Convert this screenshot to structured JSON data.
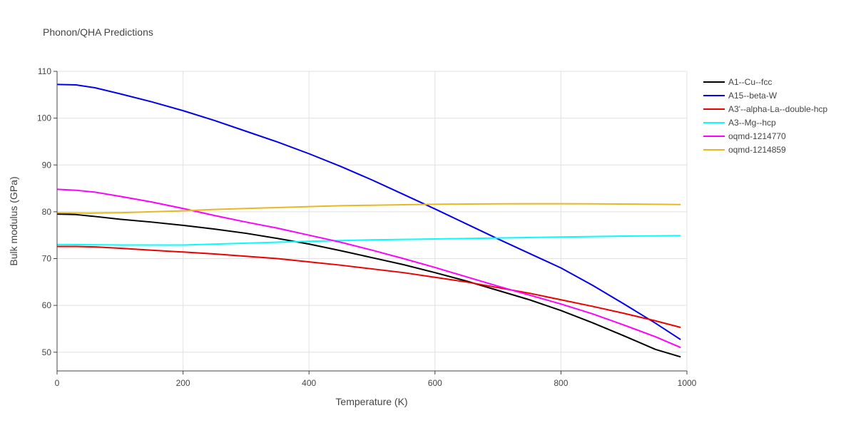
{
  "chart_data": {
    "type": "line",
    "title": "Phonon/QHA Predictions",
    "xlabel": "Temperature (K)",
    "ylabel": "Bulk modulus (GPa)",
    "xlim": [
      0,
      1000
    ],
    "ylim": [
      46,
      110
    ],
    "xticks": [
      0,
      200,
      400,
      600,
      800,
      1000
    ],
    "yticks": [
      50,
      60,
      70,
      80,
      90,
      100,
      110
    ],
    "grid": true,
    "legend_position": "top-right",
    "series": [
      {
        "name": "A1--Cu--fcc",
        "color": "#000000",
        "x": [
          0,
          30,
          60,
          100,
          150,
          200,
          250,
          300,
          350,
          400,
          450,
          500,
          550,
          600,
          650,
          700,
          750,
          800,
          850,
          900,
          950,
          990
        ],
        "y": [
          79.5,
          79.4,
          79.0,
          78.4,
          77.8,
          77.1,
          76.3,
          75.4,
          74.3,
          73.1,
          71.7,
          70.2,
          68.7,
          67.0,
          65.2,
          63.2,
          61.2,
          58.9,
          56.3,
          53.5,
          50.6,
          49.0
        ]
      },
      {
        "name": "A15--beta-W",
        "color": "#0000ee",
        "x": [
          0,
          30,
          60,
          100,
          150,
          200,
          250,
          300,
          350,
          400,
          450,
          500,
          550,
          600,
          650,
          700,
          750,
          800,
          850,
          900,
          950,
          990
        ],
        "y": [
          107.2,
          107.1,
          106.5,
          105.2,
          103.5,
          101.6,
          99.5,
          97.2,
          94.9,
          92.4,
          89.7,
          86.8,
          83.7,
          80.6,
          77.4,
          74.2,
          71.1,
          68.0,
          64.3,
          60.3,
          56.2,
          52.7
        ]
      },
      {
        "name": "A3'--alpha-La--double-hcp",
        "color": "#ee0000",
        "x": [
          0,
          30,
          60,
          100,
          150,
          200,
          250,
          300,
          350,
          400,
          450,
          500,
          550,
          600,
          650,
          700,
          750,
          800,
          850,
          900,
          950,
          990
        ],
        "y": [
          72.6,
          72.6,
          72.5,
          72.2,
          71.8,
          71.4,
          71.0,
          70.5,
          70.0,
          69.3,
          68.6,
          67.8,
          67.0,
          66.0,
          65.0,
          63.8,
          62.6,
          61.2,
          59.8,
          58.3,
          56.7,
          55.3
        ]
      },
      {
        "name": "A3--Mg--hcp",
        "color": "#00ffff",
        "x": [
          0,
          100,
          200,
          300,
          400,
          500,
          600,
          700,
          800,
          900,
          990
        ],
        "y": [
          73.0,
          72.9,
          72.9,
          73.3,
          73.7,
          74.0,
          74.2,
          74.4,
          74.6,
          74.8,
          74.9
        ]
      },
      {
        "name": "oqmd-1214770",
        "color": "#ff00ff",
        "x": [
          0,
          30,
          60,
          100,
          150,
          200,
          250,
          300,
          350,
          400,
          450,
          500,
          550,
          600,
          650,
          700,
          750,
          800,
          850,
          900,
          950,
          990
        ],
        "y": [
          84.8,
          84.6,
          84.2,
          83.3,
          82.1,
          80.7,
          79.2,
          77.8,
          76.5,
          75.0,
          73.5,
          71.8,
          70.0,
          68.1,
          66.1,
          64.1,
          62.2,
          60.3,
          58.2,
          55.8,
          53.3,
          51.0
        ]
      },
      {
        "name": "oqmd-1214859",
        "color": "#e8b820",
        "x": [
          0,
          50,
          100,
          150,
          200,
          250,
          300,
          350,
          400,
          450,
          500,
          550,
          600,
          650,
          700,
          750,
          800,
          850,
          900,
          950,
          990
        ],
        "y": [
          79.8,
          79.7,
          79.8,
          80.0,
          80.2,
          80.5,
          80.7,
          80.9,
          81.1,
          81.3,
          81.4,
          81.5,
          81.6,
          81.65,
          81.7,
          81.72,
          81.72,
          81.7,
          81.65,
          81.6,
          81.55
        ]
      }
    ]
  }
}
